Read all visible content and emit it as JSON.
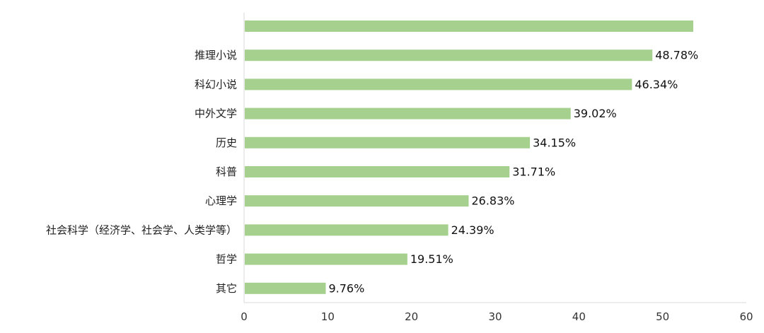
{
  "chart_data": {
    "type": "bar",
    "orientation": "horizontal",
    "categories": [
      "",
      "推理小说",
      "科幻小说",
      "中外文学",
      "历史",
      "科普",
      "心理学",
      "社会科学（经济学、社会学、人类学等）",
      "哲学",
      "其它"
    ],
    "values": [
      53.66,
      48.78,
      46.34,
      39.02,
      34.15,
      31.71,
      26.83,
      24.39,
      19.51,
      9.76
    ],
    "data_labels": [
      "",
      "48.78%",
      "46.34%",
      "39.02%",
      "34.15%",
      "31.71%",
      "26.83%",
      "24.39%",
      "19.51%",
      "9.76%"
    ],
    "xlim": [
      0,
      60
    ],
    "xticks": [
      "0",
      "10",
      "20",
      "30",
      "40",
      "50",
      "60"
    ],
    "grid": false,
    "legend": "none",
    "bar_color": "#a5d08d",
    "axis_color": "#d9d9d9"
  }
}
